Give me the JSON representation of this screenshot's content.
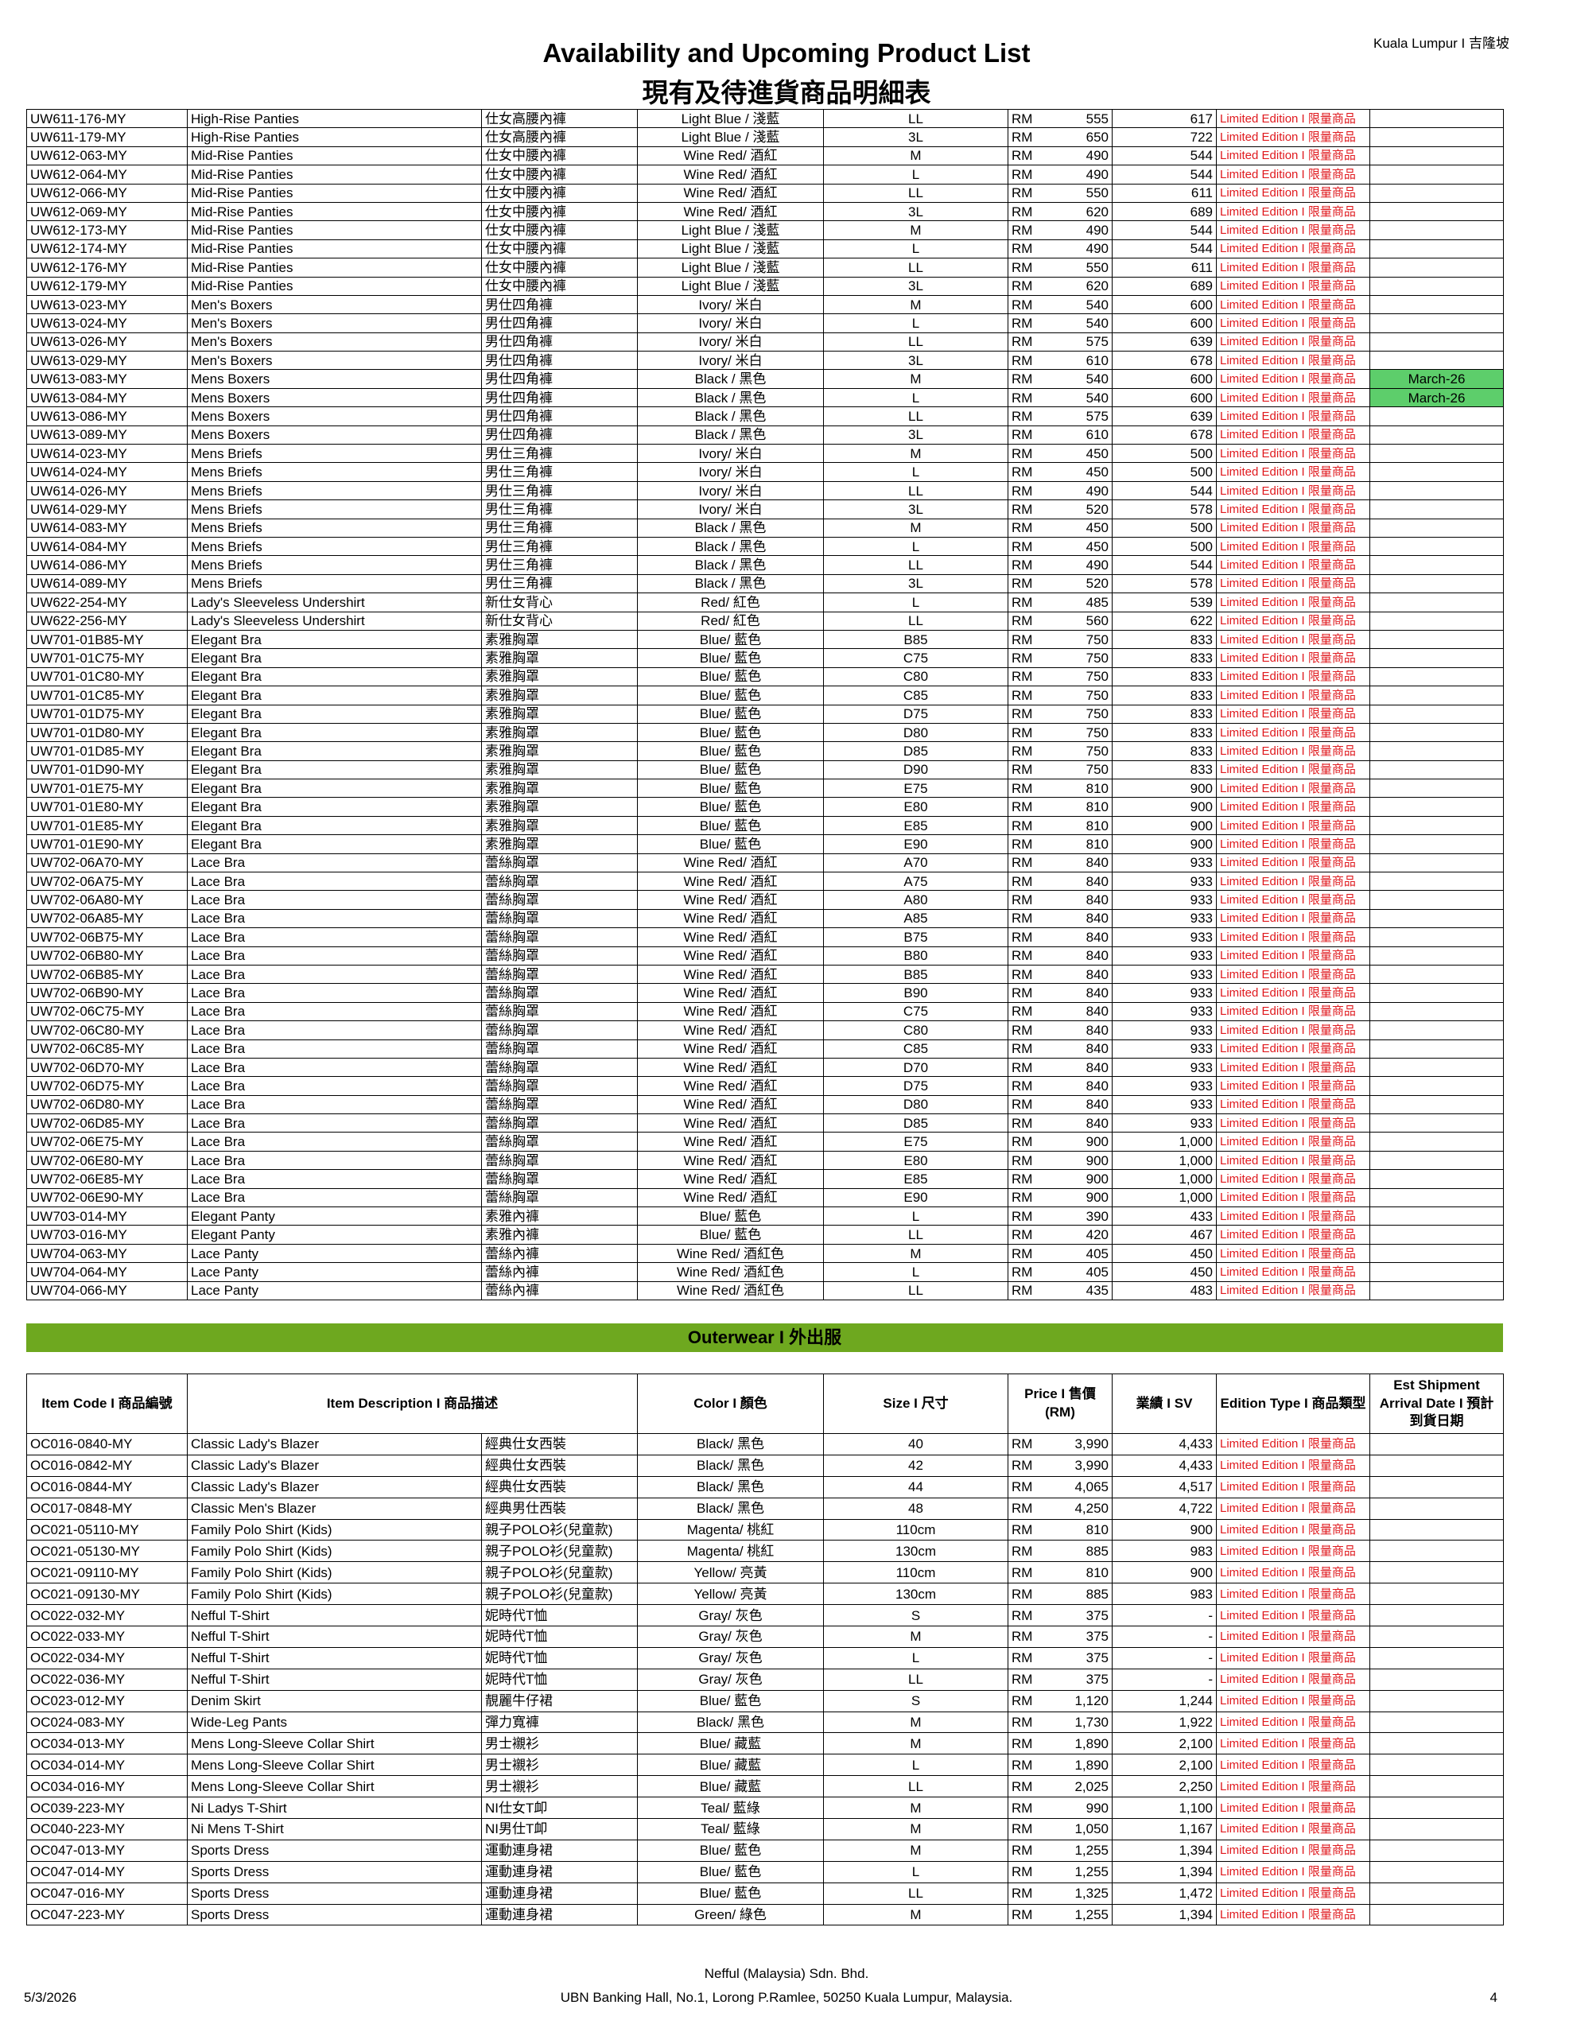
{
  "header": {
    "location": "Kuala Lumpur I 吉隆坡",
    "title": "Availability and Upcoming Product List",
    "subtitle": "現有及待進貨商品明細表"
  },
  "inner_table": {
    "rows": [
      [
        "UW611-176-MY",
        "High-Rise Panties",
        "仕女高腰內褲",
        "Light Blue / 淺藍",
        "LL",
        "RM",
        "555",
        "617",
        "Limited Edition I 限量商品"
      ],
      [
        "UW611-179-MY",
        "High-Rise Panties",
        "仕女高腰內褲",
        "Light Blue / 淺藍",
        "3L",
        "RM",
        "650",
        "722",
        "Limited Edition I 限量商品"
      ],
      [
        "UW612-063-MY",
        "Mid-Rise Panties",
        "仕女中腰內褲",
        "Wine Red/ 酒紅",
        "M",
        "RM",
        "490",
        "544",
        "Limited Edition I 限量商品"
      ],
      [
        "UW612-064-MY",
        "Mid-Rise Panties",
        "仕女中腰內褲",
        "Wine Red/ 酒紅",
        "L",
        "RM",
        "490",
        "544",
        "Limited Edition I 限量商品"
      ],
      [
        "UW612-066-MY",
        "Mid-Rise Panties",
        "仕女中腰內褲",
        "Wine Red/ 酒紅",
        "LL",
        "RM",
        "550",
        "611",
        "Limited Edition I 限量商品"
      ],
      [
        "UW612-069-MY",
        "Mid-Rise Panties",
        "仕女中腰內褲",
        "Wine Red/ 酒紅",
        "3L",
        "RM",
        "620",
        "689",
        "Limited Edition I 限量商品"
      ],
      [
        "UW612-173-MY",
        "Mid-Rise Panties",
        "仕女中腰內褲",
        "Light Blue / 淺藍",
        "M",
        "RM",
        "490",
        "544",
        "Limited Edition I 限量商品"
      ],
      [
        "UW612-174-MY",
        "Mid-Rise Panties",
        "仕女中腰內褲",
        "Light Blue / 淺藍",
        "L",
        "RM",
        "490",
        "544",
        "Limited Edition I 限量商品"
      ],
      [
        "UW612-176-MY",
        "Mid-Rise Panties",
        "仕女中腰內褲",
        "Light Blue / 淺藍",
        "LL",
        "RM",
        "550",
        "611",
        "Limited Edition I 限量商品"
      ],
      [
        "UW612-179-MY",
        "Mid-Rise Panties",
        "仕女中腰內褲",
        "Light Blue / 淺藍",
        "3L",
        "RM",
        "620",
        "689",
        "Limited Edition I 限量商品"
      ],
      [
        "UW613-023-MY",
        "Men's Boxers",
        "男仕四角褲",
        "Ivory/ 米白",
        "M",
        "RM",
        "540",
        "600",
        "Limited Edition I 限量商品"
      ],
      [
        "UW613-024-MY",
        "Men's Boxers",
        "男仕四角褲",
        "Ivory/ 米白",
        "L",
        "RM",
        "540",
        "600",
        "Limited Edition I 限量商品"
      ],
      [
        "UW613-026-MY",
        "Men's Boxers",
        "男仕四角褲",
        "Ivory/ 米白",
        "LL",
        "RM",
        "575",
        "639",
        "Limited Edition I 限量商品"
      ],
      [
        "UW613-029-MY",
        "Men's Boxers",
        "男仕四角褲",
        "Ivory/ 米白",
        "3L",
        "RM",
        "610",
        "678",
        "Limited Edition I 限量商品"
      ],
      [
        "UW613-083-MY",
        "Mens Boxers",
        "男仕四角褲",
        "Black / 黑色",
        "M",
        "RM",
        "540",
        "600",
        "Limited Edition I 限量商品",
        "March-26"
      ],
      [
        "UW613-084-MY",
        "Mens Boxers",
        "男仕四角褲",
        "Black / 黑色",
        "L",
        "RM",
        "540",
        "600",
        "Limited Edition I 限量商品",
        "March-26"
      ],
      [
        "UW613-086-MY",
        "Mens Boxers",
        "男仕四角褲",
        "Black / 黑色",
        "LL",
        "RM",
        "575",
        "639",
        "Limited Edition I 限量商品"
      ],
      [
        "UW613-089-MY",
        "Mens Boxers",
        "男仕四角褲",
        "Black / 黑色",
        "3L",
        "RM",
        "610",
        "678",
        "Limited Edition I 限量商品"
      ],
      [
        "UW614-023-MY",
        "Mens Briefs",
        "男仕三角褲",
        "Ivory/ 米白",
        "M",
        "RM",
        "450",
        "500",
        "Limited Edition I 限量商品"
      ],
      [
        "UW614-024-MY",
        "Mens Briefs",
        "男仕三角褲",
        "Ivory/ 米白",
        "L",
        "RM",
        "450",
        "500",
        "Limited Edition I 限量商品"
      ],
      [
        "UW614-026-MY",
        "Mens Briefs",
        "男仕三角褲",
        "Ivory/ 米白",
        "LL",
        "RM",
        "490",
        "544",
        "Limited Edition I 限量商品"
      ],
      [
        "UW614-029-MY",
        "Mens Briefs",
        "男仕三角褲",
        "Ivory/ 米白",
        "3L",
        "RM",
        "520",
        "578",
        "Limited Edition I 限量商品"
      ],
      [
        "UW614-083-MY",
        "Mens Briefs",
        "男仕三角褲",
        "Black / 黑色",
        "M",
        "RM",
        "450",
        "500",
        "Limited Edition I 限量商品"
      ],
      [
        "UW614-084-MY",
        "Mens Briefs",
        "男仕三角褲",
        "Black / 黑色",
        "L",
        "RM",
        "450",
        "500",
        "Limited Edition I 限量商品"
      ],
      [
        "UW614-086-MY",
        "Mens Briefs",
        "男仕三角褲",
        "Black / 黑色",
        "LL",
        "RM",
        "490",
        "544",
        "Limited Edition I 限量商品"
      ],
      [
        "UW614-089-MY",
        "Mens Briefs",
        "男仕三角褲",
        "Black / 黑色",
        "3L",
        "RM",
        "520",
        "578",
        "Limited Edition I 限量商品"
      ],
      [
        "UW622-254-MY",
        "Lady's Sleeveless Undershirt",
        "新仕女背心",
        "Red/ 紅色",
        "L",
        "RM",
        "485",
        "539",
        "Limited Edition I 限量商品"
      ],
      [
        "UW622-256-MY",
        "Lady's Sleeveless Undershirt",
        "新仕女背心",
        "Red/ 紅色",
        "LL",
        "RM",
        "560",
        "622",
        "Limited Edition I 限量商品"
      ],
      [
        "UW701-01B85-MY",
        "Elegant Bra",
        "素雅胸罩",
        "Blue/ 藍色",
        "B85",
        "RM",
        "750",
        "833",
        "Limited Edition I 限量商品"
      ],
      [
        "UW701-01C75-MY",
        "Elegant Bra",
        "素雅胸罩",
        "Blue/ 藍色",
        "C75",
        "RM",
        "750",
        "833",
        "Limited Edition I 限量商品"
      ],
      [
        "UW701-01C80-MY",
        "Elegant Bra",
        "素雅胸罩",
        "Blue/ 藍色",
        "C80",
        "RM",
        "750",
        "833",
        "Limited Edition I 限量商品"
      ],
      [
        "UW701-01C85-MY",
        "Elegant Bra",
        "素雅胸罩",
        "Blue/ 藍色",
        "C85",
        "RM",
        "750",
        "833",
        "Limited Edition I 限量商品"
      ],
      [
        "UW701-01D75-MY",
        "Elegant Bra",
        "素雅胸罩",
        "Blue/ 藍色",
        "D75",
        "RM",
        "750",
        "833",
        "Limited Edition I 限量商品"
      ],
      [
        "UW701-01D80-MY",
        "Elegant Bra",
        "素雅胸罩",
        "Blue/ 藍色",
        "D80",
        "RM",
        "750",
        "833",
        "Limited Edition I 限量商品"
      ],
      [
        "UW701-01D85-MY",
        "Elegant Bra",
        "素雅胸罩",
        "Blue/ 藍色",
        "D85",
        "RM",
        "750",
        "833",
        "Limited Edition I 限量商品"
      ],
      [
        "UW701-01D90-MY",
        "Elegant Bra",
        "素雅胸罩",
        "Blue/ 藍色",
        "D90",
        "RM",
        "750",
        "833",
        "Limited Edition I 限量商品"
      ],
      [
        "UW701-01E75-MY",
        "Elegant Bra",
        "素雅胸罩",
        "Blue/ 藍色",
        "E75",
        "RM",
        "810",
        "900",
        "Limited Edition I 限量商品"
      ],
      [
        "UW701-01E80-MY",
        "Elegant Bra",
        "素雅胸罩",
        "Blue/ 藍色",
        "E80",
        "RM",
        "810",
        "900",
        "Limited Edition I 限量商品"
      ],
      [
        "UW701-01E85-MY",
        "Elegant Bra",
        "素雅胸罩",
        "Blue/ 藍色",
        "E85",
        "RM",
        "810",
        "900",
        "Limited Edition I 限量商品"
      ],
      [
        "UW701-01E90-MY",
        "Elegant Bra",
        "素雅胸罩",
        "Blue/ 藍色",
        "E90",
        "RM",
        "810",
        "900",
        "Limited Edition I 限量商品"
      ],
      [
        "UW702-06A70-MY",
        "Lace Bra",
        "蕾絲胸罩",
        "Wine Red/ 酒紅",
        "A70",
        "RM",
        "840",
        "933",
        "Limited Edition I 限量商品"
      ],
      [
        "UW702-06A75-MY",
        "Lace Bra",
        "蕾絲胸罩",
        "Wine Red/ 酒紅",
        "A75",
        "RM",
        "840",
        "933",
        "Limited Edition I 限量商品"
      ],
      [
        "UW702-06A80-MY",
        "Lace Bra",
        "蕾絲胸罩",
        "Wine Red/ 酒紅",
        "A80",
        "RM",
        "840",
        "933",
        "Limited Edition I 限量商品"
      ],
      [
        "UW702-06A85-MY",
        "Lace Bra",
        "蕾絲胸罩",
        "Wine Red/ 酒紅",
        "A85",
        "RM",
        "840",
        "933",
        "Limited Edition I 限量商品"
      ],
      [
        "UW702-06B75-MY",
        "Lace Bra",
        "蕾絲胸罩",
        "Wine Red/ 酒紅",
        "B75",
        "RM",
        "840",
        "933",
        "Limited Edition I 限量商品"
      ],
      [
        "UW702-06B80-MY",
        "Lace Bra",
        "蕾絲胸罩",
        "Wine Red/ 酒紅",
        "B80",
        "RM",
        "840",
        "933",
        "Limited Edition I 限量商品"
      ],
      [
        "UW702-06B85-MY",
        "Lace Bra",
        "蕾絲胸罩",
        "Wine Red/ 酒紅",
        "B85",
        "RM",
        "840",
        "933",
        "Limited Edition I 限量商品"
      ],
      [
        "UW702-06B90-MY",
        "Lace Bra",
        "蕾絲胸罩",
        "Wine Red/ 酒紅",
        "B90",
        "RM",
        "840",
        "933",
        "Limited Edition I 限量商品"
      ],
      [
        "UW702-06C75-MY",
        "Lace Bra",
        "蕾絲胸罩",
        "Wine Red/ 酒紅",
        "C75",
        "RM",
        "840",
        "933",
        "Limited Edition I 限量商品"
      ],
      [
        "UW702-06C80-MY",
        "Lace Bra",
        "蕾絲胸罩",
        "Wine Red/ 酒紅",
        "C80",
        "RM",
        "840",
        "933",
        "Limited Edition I 限量商品"
      ],
      [
        "UW702-06C85-MY",
        "Lace Bra",
        "蕾絲胸罩",
        "Wine Red/ 酒紅",
        "C85",
        "RM",
        "840",
        "933",
        "Limited Edition I 限量商品"
      ],
      [
        "UW702-06D70-MY",
        "Lace Bra",
        "蕾絲胸罩",
        "Wine Red/ 酒紅",
        "D70",
        "RM",
        "840",
        "933",
        "Limited Edition I 限量商品"
      ],
      [
        "UW702-06D75-MY",
        "Lace Bra",
        "蕾絲胸罩",
        "Wine Red/ 酒紅",
        "D75",
        "RM",
        "840",
        "933",
        "Limited Edition I 限量商品"
      ],
      [
        "UW702-06D80-MY",
        "Lace Bra",
        "蕾絲胸罩",
        "Wine Red/ 酒紅",
        "D80",
        "RM",
        "840",
        "933",
        "Limited Edition I 限量商品"
      ],
      [
        "UW702-06D85-MY",
        "Lace Bra",
        "蕾絲胸罩",
        "Wine Red/ 酒紅",
        "D85",
        "RM",
        "840",
        "933",
        "Limited Edition I 限量商品"
      ],
      [
        "UW702-06E75-MY",
        "Lace Bra",
        "蕾絲胸罩",
        "Wine Red/ 酒紅",
        "E75",
        "RM",
        "900",
        "1,000",
        "Limited Edition I 限量商品"
      ],
      [
        "UW702-06E80-MY",
        "Lace Bra",
        "蕾絲胸罩",
        "Wine Red/ 酒紅",
        "E80",
        "RM",
        "900",
        "1,000",
        "Limited Edition I 限量商品"
      ],
      [
        "UW702-06E85-MY",
        "Lace Bra",
        "蕾絲胸罩",
        "Wine Red/ 酒紅",
        "E85",
        "RM",
        "900",
        "1,000",
        "Limited Edition I 限量商品"
      ],
      [
        "UW702-06E90-MY",
        "Lace Bra",
        "蕾絲胸罩",
        "Wine Red/ 酒紅",
        "E90",
        "RM",
        "900",
        "1,000",
        "Limited Edition I 限量商品"
      ],
      [
        "UW703-014-MY",
        "Elegant Panty",
        "素雅內褲",
        "Blue/ 藍色",
        "L",
        "RM",
        "390",
        "433",
        "Limited Edition I 限量商品"
      ],
      [
        "UW703-016-MY",
        "Elegant Panty",
        "素雅內褲",
        "Blue/ 藍色",
        "LL",
        "RM",
        "420",
        "467",
        "Limited Edition I 限量商品"
      ],
      [
        "UW704-063-MY",
        "Lace Panty",
        "蕾絲內褲",
        "Wine Red/ 酒紅色",
        "M",
        "RM",
        "405",
        "450",
        "Limited Edition I 限量商品"
      ],
      [
        "UW704-064-MY",
        "Lace Panty",
        "蕾絲內褲",
        "Wine Red/ 酒紅色",
        "L",
        "RM",
        "405",
        "450",
        "Limited Edition I 限量商品"
      ],
      [
        "UW704-066-MY",
        "Lace Panty",
        "蕾絲內褲",
        "Wine Red/ 酒紅色",
        "LL",
        "RM",
        "435",
        "483",
        "Limited Edition I 限量商品"
      ]
    ]
  },
  "outerwear": {
    "title": "Outerwear I 外出服",
    "header": [
      "Item Code I 商品編號",
      "Item Description I 商品描述",
      "Color I 顏色",
      "Size I 尺寸",
      "Price I 售價 (RM)",
      "業績 I SV",
      "Edition Type I 商品類型",
      "Est Shipment Arrival Date I 預計到貨日期"
    ],
    "rows": [
      [
        "OC016-0840-MY",
        "Classic Lady's Blazer",
        "經典仕女西裝",
        "Black/ 黑色",
        "40",
        "RM",
        "3,990",
        "4,433",
        "Limited Edition I 限量商品"
      ],
      [
        "OC016-0842-MY",
        "Classic Lady's Blazer",
        "經典仕女西裝",
        "Black/ 黑色",
        "42",
        "RM",
        "3,990",
        "4,433",
        "Limited Edition I 限量商品"
      ],
      [
        "OC016-0844-MY",
        "Classic Lady's Blazer",
        "經典仕女西裝",
        "Black/ 黑色",
        "44",
        "RM",
        "4,065",
        "4,517",
        "Limited Edition I 限量商品"
      ],
      [
        "OC017-0848-MY",
        "Classic Men's Blazer",
        "經典男仕西裝",
        "Black/ 黑色",
        "48",
        "RM",
        "4,250",
        "4,722",
        "Limited Edition I 限量商品"
      ],
      [
        "OC021-05110-MY",
        "Family Polo Shirt (Kids)",
        "親子POLO衫(兒童款)",
        "Magenta/ 桃紅",
        "110cm",
        "RM",
        "810",
        "900",
        "Limited Edition I 限量商品"
      ],
      [
        "OC021-05130-MY",
        "Family Polo Shirt (Kids)",
        "親子POLO衫(兒童款)",
        "Magenta/ 桃紅",
        "130cm",
        "RM",
        "885",
        "983",
        "Limited Edition I 限量商品"
      ],
      [
        "OC021-09110-MY",
        "Family Polo Shirt (Kids)",
        "親子POLO衫(兒童款)",
        "Yellow/ 亮黃",
        "110cm",
        "RM",
        "810",
        "900",
        "Limited Edition I 限量商品"
      ],
      [
        "OC021-09130-MY",
        "Family Polo Shirt (Kids)",
        "親子POLO衫(兒童款)",
        "Yellow/ 亮黃",
        "130cm",
        "RM",
        "885",
        "983",
        "Limited Edition I 限量商品"
      ],
      [
        "OC022-032-MY",
        "Nefful T-Shirt",
        "妮時代T恤",
        "Gray/ 灰色",
        "S",
        "RM",
        "375",
        "-",
        "Limited Edition I 限量商品"
      ],
      [
        "OC022-033-MY",
        "Nefful T-Shirt",
        "妮時代T恤",
        "Gray/ 灰色",
        "M",
        "RM",
        "375",
        "-",
        "Limited Edition I 限量商品"
      ],
      [
        "OC022-034-MY",
        "Nefful T-Shirt",
        "妮時代T恤",
        "Gray/ 灰色",
        "L",
        "RM",
        "375",
        "-",
        "Limited Edition I 限量商品"
      ],
      [
        "OC022-036-MY",
        "Nefful T-Shirt",
        "妮時代T恤",
        "Gray/ 灰色",
        "LL",
        "RM",
        "375",
        "-",
        "Limited Edition I 限量商品"
      ],
      [
        "OC023-012-MY",
        "Denim Skirt",
        "靚麗牛仔裙",
        "Blue/ 藍色",
        "S",
        "RM",
        "1,120",
        "1,244",
        "Limited Edition I 限量商品"
      ],
      [
        "OC024-083-MY",
        "Wide-Leg Pants",
        "彈力寬褲",
        "Black/ 黑色",
        "M",
        "RM",
        "1,730",
        "1,922",
        "Limited Edition I 限量商品"
      ],
      [
        "OC034-013-MY",
        "Mens Long-Sleeve Collar Shirt",
        "男士襯衫",
        "Blue/ 藏藍",
        "M",
        "RM",
        "1,890",
        "2,100",
        "Limited Edition I 限量商品"
      ],
      [
        "OC034-014-MY",
        "Mens Long-Sleeve Collar Shirt",
        "男士襯衫",
        "Blue/ 藏藍",
        "L",
        "RM",
        "1,890",
        "2,100",
        "Limited Edition I 限量商品"
      ],
      [
        "OC034-016-MY",
        "Mens Long-Sleeve Collar Shirt",
        "男士襯衫",
        "Blue/ 藏藍",
        "LL",
        "RM",
        "2,025",
        "2,250",
        "Limited Edition I 限量商品"
      ],
      [
        "OC039-223-MY",
        "Ni Ladys T-Shirt",
        "NI仕女T卹",
        "Teal/ 藍綠",
        "M",
        "RM",
        "990",
        "1,100",
        "Limited Edition I 限量商品"
      ],
      [
        "OC040-223-MY",
        "Ni Mens T-Shirt",
        "NI男仕T卹",
        "Teal/ 藍綠",
        "M",
        "RM",
        "1,050",
        "1,167",
        "Limited Edition I 限量商品"
      ],
      [
        "OC047-013-MY",
        "Sports Dress",
        "運動連身裙",
        "Blue/ 藍色",
        "M",
        "RM",
        "1,255",
        "1,394",
        "Limited Edition I 限量商品"
      ],
      [
        "OC047-014-MY",
        "Sports Dress",
        "運動連身裙",
        "Blue/ 藍色",
        "L",
        "RM",
        "1,255",
        "1,394",
        "Limited Edition I 限量商品"
      ],
      [
        "OC047-016-MY",
        "Sports Dress",
        "運動連身裙",
        "Blue/ 藍色",
        "LL",
        "RM",
        "1,325",
        "1,472",
        "Limited Edition I 限量商品"
      ],
      [
        "OC047-223-MY",
        "Sports Dress",
        "運動連身裙",
        "Green/ 綠色",
        "M",
        "RM",
        "1,255",
        "1,394",
        "Limited Edition I 限量商品"
      ]
    ]
  },
  "footer": {
    "company": "Nefful (Malaysia) Sdn. Bhd.",
    "address": "UBN Banking Hall, No.1, Lorong P.Ramlee, 50250 Kuala Lumpur, Malaysia.",
    "date": "5/3/2026",
    "page": "4"
  }
}
